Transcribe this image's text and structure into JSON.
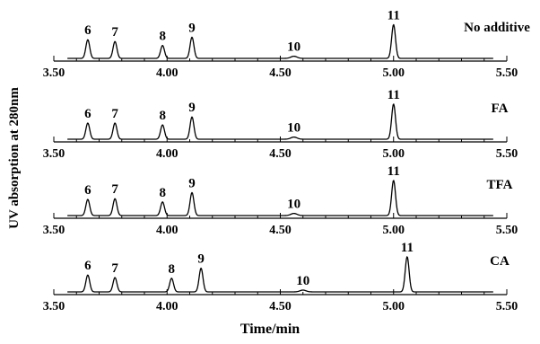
{
  "chart_data": {
    "type": "line",
    "xlabel": "Time/min",
    "ylabel": "UV absorption at 280nm",
    "xlim": [
      3.5,
      5.5
    ],
    "xticks": [
      "3.50",
      "4.00",
      "4.50",
      "5.00",
      "5.50"
    ],
    "panels": [
      {
        "label": "No additive",
        "peaks": [
          {
            "label": "6",
            "rt": 3.65,
            "height": 0.52
          },
          {
            "label": "7",
            "rt": 3.77,
            "height": 0.47
          },
          {
            "label": "8",
            "rt": 3.98,
            "height": 0.36
          },
          {
            "label": "9",
            "rt": 4.11,
            "height": 0.59
          },
          {
            "label": "10",
            "rt": 4.56,
            "height": 0.06
          },
          {
            "label": "11",
            "rt": 5.0,
            "height": 0.94
          }
        ]
      },
      {
        "label": "FA",
        "peaks": [
          {
            "label": "6",
            "rt": 3.65,
            "height": 0.45
          },
          {
            "label": "7",
            "rt": 3.77,
            "height": 0.45
          },
          {
            "label": "8",
            "rt": 3.98,
            "height": 0.4
          },
          {
            "label": "9",
            "rt": 4.11,
            "height": 0.62
          },
          {
            "label": "10",
            "rt": 4.56,
            "height": 0.06
          },
          {
            "label": "11",
            "rt": 5.0,
            "height": 0.98
          }
        ]
      },
      {
        "label": "TFA",
        "peaks": [
          {
            "label": "6",
            "rt": 3.65,
            "height": 0.45
          },
          {
            "label": "7",
            "rt": 3.77,
            "height": 0.47
          },
          {
            "label": "8",
            "rt": 3.98,
            "height": 0.38
          },
          {
            "label": "9",
            "rt": 4.11,
            "height": 0.64
          },
          {
            "label": "10",
            "rt": 4.56,
            "height": 0.06
          },
          {
            "label": "11",
            "rt": 5.0,
            "height": 0.98
          }
        ]
      },
      {
        "label": "CA",
        "peaks": [
          {
            "label": "6",
            "rt": 3.65,
            "height": 0.47
          },
          {
            "label": "7",
            "rt": 3.77,
            "height": 0.4
          },
          {
            "label": "8",
            "rt": 4.02,
            "height": 0.38
          },
          {
            "label": "9",
            "rt": 4.15,
            "height": 0.66
          },
          {
            "label": "10",
            "rt": 4.6,
            "height": 0.05
          },
          {
            "label": "11",
            "rt": 5.06,
            "height": 0.98
          }
        ]
      }
    ]
  }
}
